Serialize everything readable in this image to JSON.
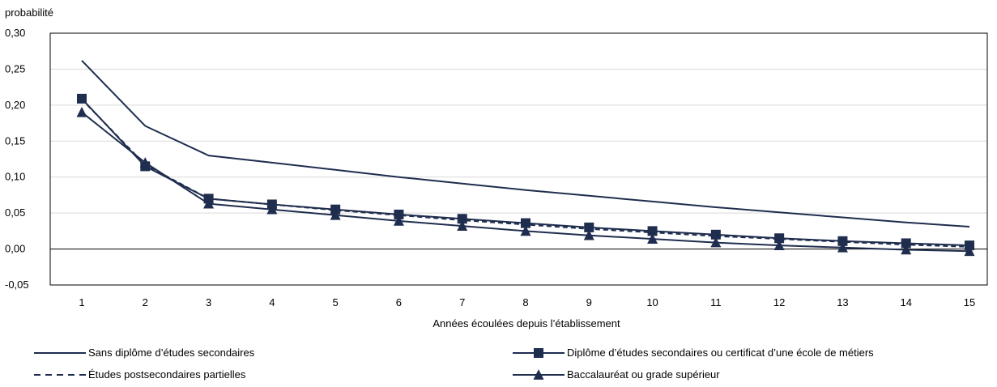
{
  "chart_data": {
    "type": "line",
    "ylabel": "probabilité",
    "xlabel": "Années écoulées depuis l’établissement",
    "x": [
      1,
      2,
      3,
      4,
      5,
      6,
      7,
      8,
      9,
      10,
      11,
      12,
      13,
      14,
      15
    ],
    "xticks": [
      "1",
      "2",
      "3",
      "4",
      "5",
      "6",
      "7",
      "8",
      "9",
      "10",
      "11",
      "12",
      "13",
      "14",
      "15"
    ],
    "ylim": [
      -0.05,
      0.3
    ],
    "yticks": [
      "-0,05",
      "0,00",
      "0,05",
      "0,10",
      "0,15",
      "0,20",
      "0,25",
      "0,30"
    ],
    "ytick_values": [
      -0.05,
      0.0,
      0.05,
      0.1,
      0.15,
      0.2,
      0.25,
      0.3
    ],
    "grid": "horizontal",
    "legend_position": "bottom",
    "series": [
      {
        "name": "Sans diplôme d’études secondaires",
        "style": "solid",
        "marker": "none",
        "color": "#1f2d4e",
        "values": [
          0.262,
          0.171,
          0.13,
          0.12,
          0.11,
          0.1,
          0.091,
          0.082,
          0.074,
          0.066,
          0.058,
          0.051,
          0.044,
          0.037,
          0.031
        ]
      },
      {
        "name": "Diplôme d’études secondaires ou certificat d’une école de métiers",
        "style": "solid",
        "marker": "square",
        "color": "#1f2d4e",
        "values": [
          0.209,
          0.115,
          0.07,
          0.062,
          0.055,
          0.048,
          0.042,
          0.036,
          0.03,
          0.025,
          0.02,
          0.015,
          0.011,
          0.008,
          0.005
        ]
      },
      {
        "name": "Études postsecondaires partielles",
        "style": "dashed",
        "marker": "none",
        "color": "#1f2d4e",
        "values": [
          0.208,
          0.117,
          0.07,
          0.062,
          0.054,
          0.047,
          0.04,
          0.034,
          0.028,
          0.023,
          0.018,
          0.014,
          0.01,
          0.006,
          0.003
        ]
      },
      {
        "name": "Baccalauréat ou grade supérieur",
        "style": "solid",
        "marker": "triangle",
        "color": "#1f2d4e",
        "values": [
          0.19,
          0.12,
          0.063,
          0.055,
          0.047,
          0.039,
          0.032,
          0.025,
          0.019,
          0.014,
          0.009,
          0.005,
          0.002,
          -0.001,
          -0.003
        ]
      }
    ]
  }
}
